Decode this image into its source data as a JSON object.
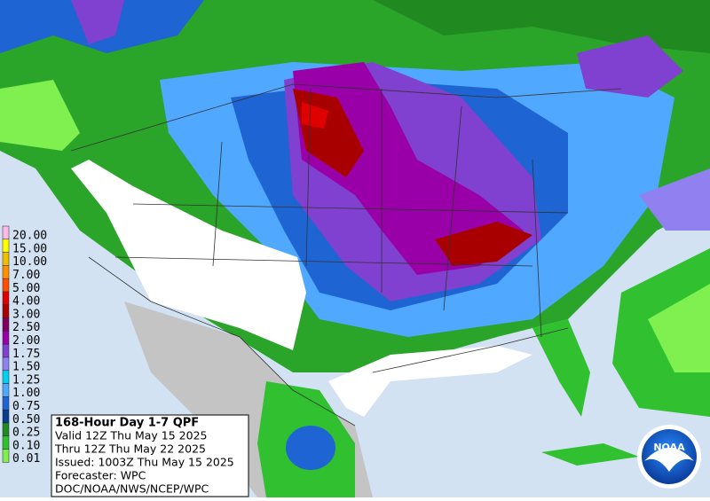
{
  "legend": {
    "items": [
      {
        "label": "20.00",
        "color": "#ffbbe6"
      },
      {
        "label": "15.00",
        "color": "#ffff00"
      },
      {
        "label": "10.00",
        "color": "#f0c000"
      },
      {
        "label": "7.00",
        "color": "#ff9000"
      },
      {
        "label": "5.00",
        "color": "#ff5000"
      },
      {
        "label": "4.00",
        "color": "#e00000"
      },
      {
        "label": "3.00",
        "color": "#a80000"
      },
      {
        "label": "2.50",
        "color": "#800060"
      },
      {
        "label": "2.00",
        "color": "#9a00a8"
      },
      {
        "label": "1.75",
        "color": "#8040d0"
      },
      {
        "label": "1.50",
        "color": "#9080f0"
      },
      {
        "label": "1.25",
        "color": "#00d0f0"
      },
      {
        "label": "1.00",
        "color": "#50a8ff"
      },
      {
        "label": "0.75",
        "color": "#1e64d2"
      },
      {
        "label": "0.50",
        "color": "#0a3c8c"
      },
      {
        "label": "0.25",
        "color": "#208a20"
      },
      {
        "label": "0.10",
        "color": "#30c030"
      },
      {
        "label": "0.01",
        "color": "#80f050"
      }
    ]
  },
  "info": {
    "title": "168-Hour Day 1-7 QPF",
    "lines": [
      "Valid 12Z Thu May 15 2025",
      "Thru 12Z Thu May 22 2025",
      "Issued: 1003Z Thu May 15 2025",
      "Forecaster: WPC",
      "DOC/NOAA/NWS/NCEP/WPC"
    ]
  },
  "logo": {
    "text": "NOAA"
  }
}
